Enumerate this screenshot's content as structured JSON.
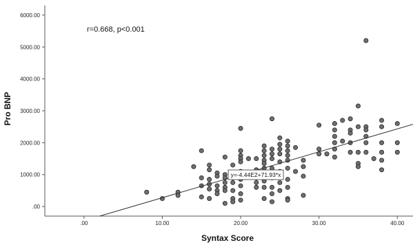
{
  "chart_data": {
    "type": "scatter",
    "title": "",
    "xlabel": "Syntax Score",
    "ylabel": "Pro BNP",
    "xlim": [
      -5,
      42
    ],
    "ylim": [
      -300,
      6300
    ],
    "xticks": [
      0,
      10,
      20,
      30,
      40
    ],
    "xtick_labels": [
      ".00",
      "10.00",
      "20.00",
      "30.00",
      "40.00"
    ],
    "yticks": [
      0,
      1000,
      2000,
      3000,
      4000,
      5000,
      6000
    ],
    "ytick_labels": [
      ".00",
      "1000.00",
      "2000.00",
      "3000.00",
      "4000.00",
      "5000.00",
      "6000.00"
    ],
    "annotation": "r=0.668, p<0.001",
    "fit_line": {
      "equation": "y=-4.44E2+71.93*x",
      "intercept": -444,
      "slope": 71.93
    },
    "grid": false,
    "points": [
      [
        8,
        450
      ],
      [
        10,
        250
      ],
      [
        12,
        450
      ],
      [
        12,
        350
      ],
      [
        14,
        1250
      ],
      [
        15,
        1750
      ],
      [
        15,
        900
      ],
      [
        15,
        650
      ],
      [
        15,
        300
      ],
      [
        16,
        1300
      ],
      [
        16,
        1150
      ],
      [
        16,
        850
      ],
      [
        16,
        700
      ],
      [
        16,
        550
      ],
      [
        16,
        250
      ],
      [
        17,
        1050
      ],
      [
        17,
        950
      ],
      [
        17,
        650
      ],
      [
        17,
        500
      ],
      [
        17,
        400
      ],
      [
        18,
        1550
      ],
      [
        18,
        1000
      ],
      [
        18,
        900
      ],
      [
        18,
        750
      ],
      [
        18,
        600
      ],
      [
        18,
        500
      ],
      [
        18,
        100
      ],
      [
        19,
        1300
      ],
      [
        19,
        1000
      ],
      [
        19,
        900
      ],
      [
        19,
        750
      ],
      [
        19,
        500
      ],
      [
        19,
        250
      ],
      [
        19,
        150
      ],
      [
        20,
        2450
      ],
      [
        20,
        1750
      ],
      [
        20,
        1600
      ],
      [
        20,
        1500
      ],
      [
        20,
        1400
      ],
      [
        20,
        1100
      ],
      [
        20,
        850
      ],
      [
        20,
        650
      ],
      [
        20,
        400
      ],
      [
        20,
        200
      ],
      [
        21,
        1500
      ],
      [
        22,
        1500
      ],
      [
        22,
        1150
      ],
      [
        22,
        1000
      ],
      [
        22,
        900
      ],
      [
        22,
        750
      ],
      [
        22,
        600
      ],
      [
        23,
        1900
      ],
      [
        23,
        1750
      ],
      [
        23,
        1600
      ],
      [
        23,
        1450
      ],
      [
        23,
        1350
      ],
      [
        23,
        1200
      ],
      [
        23,
        950
      ],
      [
        23,
        800
      ],
      [
        23,
        600
      ],
      [
        23,
        250
      ],
      [
        24,
        2750
      ],
      [
        24,
        1800
      ],
      [
        24,
        1650
      ],
      [
        24,
        1500
      ],
      [
        24,
        1200
      ],
      [
        24,
        900
      ],
      [
        24,
        600
      ],
      [
        24,
        400
      ],
      [
        24,
        150
      ],
      [
        25,
        2150
      ],
      [
        25,
        1950
      ],
      [
        25,
        1800
      ],
      [
        25,
        1650
      ],
      [
        25,
        1400
      ],
      [
        25,
        1100
      ],
      [
        25,
        750
      ],
      [
        25,
        500
      ],
      [
        26,
        2050
      ],
      [
        26,
        1900
      ],
      [
        26,
        1750
      ],
      [
        26,
        1600
      ],
      [
        26,
        1450
      ],
      [
        26,
        1200
      ],
      [
        26,
        850
      ],
      [
        26,
        600
      ],
      [
        26,
        250
      ],
      [
        26,
        200
      ],
      [
        27,
        1850
      ],
      [
        27,
        1100
      ],
      [
        28,
        1450
      ],
      [
        28,
        1250
      ],
      [
        28,
        950
      ],
      [
        28,
        350
      ],
      [
        30,
        2550
      ],
      [
        30,
        1800
      ],
      [
        30,
        1650
      ],
      [
        31,
        1650
      ],
      [
        32,
        2600
      ],
      [
        32,
        2400
      ],
      [
        32,
        2200
      ],
      [
        32,
        2000
      ],
      [
        32,
        1800
      ],
      [
        32,
        1550
      ],
      [
        33,
        2700
      ],
      [
        33,
        2050
      ],
      [
        34,
        2750
      ],
      [
        34,
        2400
      ],
      [
        34,
        2300
      ],
      [
        34,
        2000
      ],
      [
        34,
        1700
      ],
      [
        35,
        3150
      ],
      [
        35,
        2500
      ],
      [
        35,
        1700
      ],
      [
        35,
        1350
      ],
      [
        35,
        1250
      ],
      [
        36,
        5200
      ],
      [
        36,
        2500
      ],
      [
        36,
        2400
      ],
      [
        36,
        2200
      ],
      [
        36,
        2000
      ],
      [
        36,
        1700
      ],
      [
        37,
        1500
      ],
      [
        38,
        2700
      ],
      [
        38,
        2500
      ],
      [
        38,
        2000
      ],
      [
        38,
        1700
      ],
      [
        38,
        1450
      ],
      [
        38,
        1150
      ],
      [
        40,
        2600
      ],
      [
        40,
        2000
      ],
      [
        40,
        1700
      ]
    ],
    "colors": {
      "marker_fill": "#6f6f6f",
      "marker_stroke": "#262626",
      "line": "#333333",
      "axis": "#555555"
    }
  }
}
